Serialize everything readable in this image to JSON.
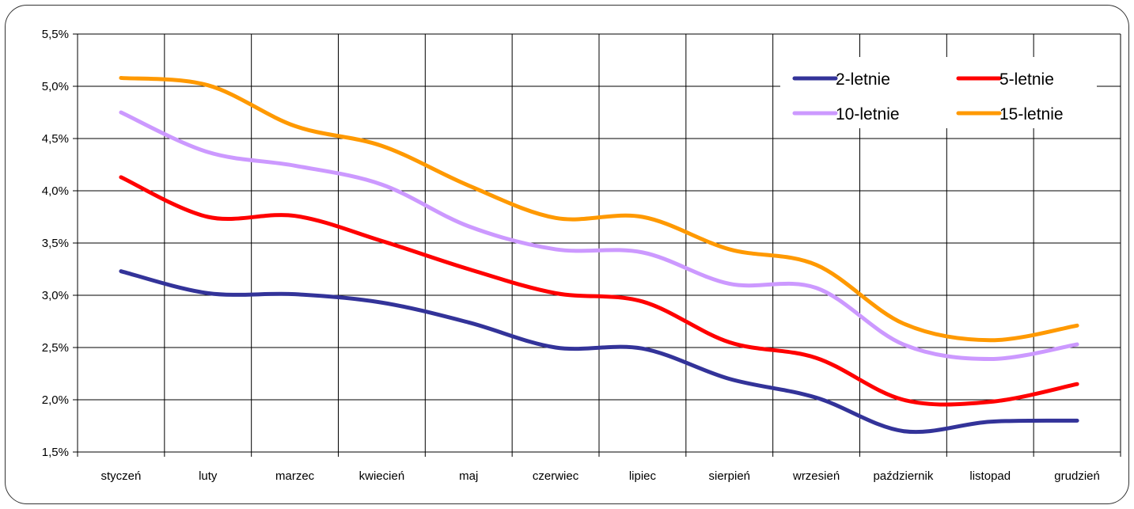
{
  "chart_data": {
    "type": "line",
    "categories": [
      "styczeń",
      "luty",
      "marzec",
      "kwiecień",
      "maj",
      "czerwiec",
      "lipiec",
      "sierpień",
      "wrzesień",
      "październik",
      "listopad",
      "grudzień"
    ],
    "series": [
      {
        "name": "2-letnie",
        "color": "#333399",
        "values": [
          3.23,
          3.02,
          3.01,
          2.93,
          2.74,
          2.5,
          2.49,
          2.2,
          2.02,
          1.7,
          1.79,
          1.8
        ]
      },
      {
        "name": "5-letnie",
        "color": "#ff0000",
        "values": [
          4.13,
          3.75,
          3.76,
          3.52,
          3.25,
          3.02,
          2.94,
          2.55,
          2.4,
          2.0,
          1.98,
          2.15
        ]
      },
      {
        "name": "10-letnie",
        "color": "#cc99ff",
        "values": [
          4.75,
          4.37,
          4.24,
          4.06,
          3.66,
          3.44,
          3.41,
          3.11,
          3.07,
          2.53,
          2.39,
          2.53
        ]
      },
      {
        "name": "15-letnie",
        "color": "#ff9900",
        "values": [
          5.08,
          5.01,
          4.62,
          4.43,
          4.05,
          3.74,
          3.75,
          3.44,
          3.29,
          2.73,
          2.57,
          2.71
        ]
      }
    ],
    "ylim": [
      1.5,
      5.5
    ],
    "yticks": [
      "1,5%",
      "2,0%",
      "2,5%",
      "3,0%",
      "3,5%",
      "4,0%",
      "4,5%",
      "5,0%",
      "5,5%"
    ],
    "grid": true,
    "legend": "top-right",
    "title": "",
    "xlabel": "",
    "ylabel": ""
  }
}
